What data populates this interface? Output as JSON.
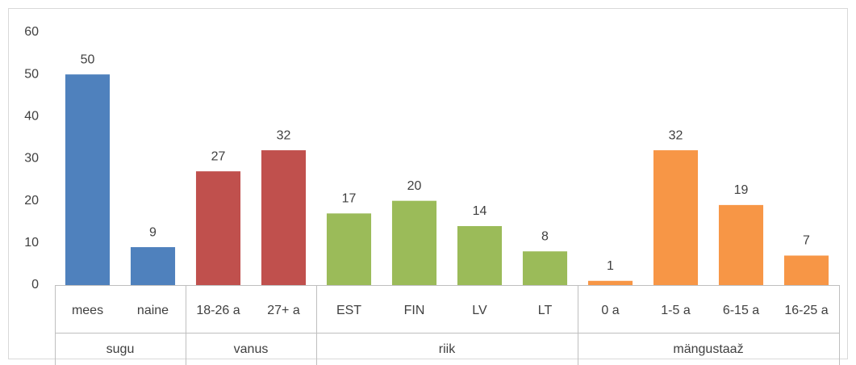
{
  "chart_data": {
    "type": "bar",
    "groups": [
      {
        "name": "sugu",
        "color": "#4f81bd",
        "categories": [
          "mees",
          "naine"
        ],
        "values": [
          50,
          9
        ]
      },
      {
        "name": "vanus",
        "color": "#c0504d",
        "categories": [
          "18-26 a",
          "27+ a"
        ],
        "values": [
          27,
          32
        ]
      },
      {
        "name": "riik",
        "color": "#9bbb59",
        "categories": [
          "EST",
          "FIN",
          "LV",
          "LT"
        ],
        "values": [
          17,
          20,
          14,
          8
        ]
      },
      {
        "name": "mängustaaž",
        "color": "#f79646",
        "categories": [
          "0 a",
          "1-5 a",
          "6-15 a",
          "16-25 a"
        ],
        "values": [
          1,
          32,
          19,
          7
        ]
      }
    ],
    "ylim": [
      0,
      60
    ],
    "yticks": [
      0,
      10,
      20,
      30,
      40,
      50,
      60
    ],
    "grid": false
  }
}
